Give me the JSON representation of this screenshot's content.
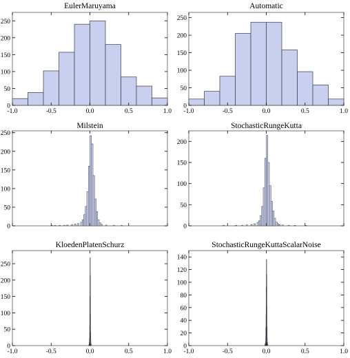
{
  "chart_data": [
    {
      "type": "bar",
      "title": "EulerMaruyama",
      "xlim": [
        -1.0,
        1.0
      ],
      "xticks": [
        "-1.0",
        "-0.5",
        "0.0",
        "0.5",
        "1.0"
      ],
      "ylim": [
        0,
        275
      ],
      "yticks": [
        "0",
        "50",
        "100",
        "150",
        "200",
        "250"
      ],
      "bin_width": 0.2,
      "bins": [
        -1.0,
        -0.8,
        -0.6,
        -0.4,
        -0.2,
        0.0,
        0.2,
        0.4,
        0.6,
        0.8
      ],
      "values": [
        20,
        38,
        102,
        157,
        240,
        250,
        180,
        84,
        57,
        22
      ]
    },
    {
      "type": "bar",
      "title": "Automatic",
      "xlim": [
        -1.0,
        1.0
      ],
      "xticks": [
        "-1.0",
        "-0.5",
        "0.0",
        "0.5",
        "1.0"
      ],
      "ylim": [
        0,
        265
      ],
      "yticks": [
        "0",
        "50",
        "100",
        "150",
        "200",
        "250"
      ],
      "bin_width": 0.2,
      "bins": [
        -1.0,
        -0.8,
        -0.6,
        -0.4,
        -0.2,
        0.0,
        0.2,
        0.4,
        0.6,
        0.8
      ],
      "values": [
        18,
        40,
        83,
        205,
        237,
        237,
        158,
        96,
        58,
        18
      ]
    },
    {
      "type": "bar",
      "title": "Milstein",
      "xlim": [
        -1.0,
        1.0
      ],
      "xticks": [],
      "ylim": [
        0,
        255
      ],
      "yticks": [
        "0",
        "50",
        "100",
        "150",
        "200",
        "250"
      ],
      "bin_width": 0.02,
      "bins": [
        -0.5,
        -0.46,
        -0.4,
        -0.34,
        -0.3,
        -0.24,
        -0.2,
        -0.16,
        -0.12,
        -0.1,
        -0.08,
        -0.06,
        -0.04,
        -0.02,
        0.0,
        0.02,
        0.04,
        0.06,
        0.08,
        0.1,
        0.12,
        0.14,
        0.2,
        0.3,
        0.4
      ],
      "values": [
        1,
        1,
        1,
        1,
        2,
        3,
        5,
        6,
        10,
        16,
        30,
        52,
        92,
        160,
        242,
        220,
        135,
        72,
        38,
        16,
        8,
        4,
        2,
        1,
        1
      ]
    },
    {
      "type": "bar",
      "title": "StochasticRungeKutta",
      "xlim": [
        -1.0,
        1.0
      ],
      "xticks": [],
      "ylim": [
        0,
        225
      ],
      "yticks": [
        "0",
        "50",
        "100",
        "150",
        "200"
      ],
      "bin_width": 0.02,
      "bins": [
        -0.56,
        -0.4,
        -0.32,
        -0.26,
        -0.2,
        -0.16,
        -0.12,
        -0.1,
        -0.08,
        -0.06,
        -0.04,
        -0.02,
        0.0,
        0.02,
        0.04,
        0.06,
        0.08,
        0.1,
        0.12,
        0.14,
        0.16,
        0.2,
        0.28,
        0.36,
        0.5
      ],
      "values": [
        1,
        1,
        1,
        2,
        3,
        5,
        8,
        12,
        24,
        46,
        90,
        160,
        214,
        150,
        95,
        58,
        35,
        18,
        9,
        5,
        3,
        2,
        1,
        1,
        1
      ]
    },
    {
      "type": "bar",
      "title": "KloedenPlatenSchurz",
      "xlim": [
        -1.0,
        1.0
      ],
      "xticks": [
        "-1.0",
        "-0.5",
        "0.0",
        "0.5",
        "1.0"
      ],
      "ylim": [
        0,
        290
      ],
      "yticks": [
        "0",
        "50",
        "100",
        "150",
        "200",
        "250"
      ],
      "bin_width": 0.002,
      "bins": [
        -0.016,
        -0.012,
        -0.008,
        -0.006,
        -0.004,
        -0.002,
        0.0,
        0.002,
        0.004,
        0.006,
        0.008,
        0.012,
        0.016
      ],
      "values": [
        2,
        4,
        10,
        22,
        60,
        150,
        268,
        215,
        95,
        40,
        14,
        5,
        2
      ]
    },
    {
      "type": "bar",
      "title": "StochasticRungeKuttaScalarNoise",
      "xlim": [
        -1.0,
        1.0
      ],
      "xticks": [
        "-1.0",
        "-0.5",
        "0.0",
        "0.5",
        "1.0"
      ],
      "ylim": [
        0,
        150
      ],
      "yticks": [
        "0",
        "20",
        "40",
        "60",
        "80",
        "100",
        "120",
        "140"
      ],
      "bin_width": 0.002,
      "bins": [
        -0.02,
        -0.016,
        -0.012,
        -0.008,
        -0.006,
        -0.004,
        -0.002,
        0.0,
        0.002,
        0.004,
        0.006,
        0.008,
        0.012,
        0.016
      ],
      "values": [
        1,
        3,
        6,
        14,
        28,
        48,
        92,
        136,
        112,
        62,
        30,
        12,
        5,
        2
      ]
    }
  ],
  "style": {
    "bar_fill": "#c9cfee",
    "bar_stroke": "#3a3a44",
    "axis_color": "#000000"
  }
}
